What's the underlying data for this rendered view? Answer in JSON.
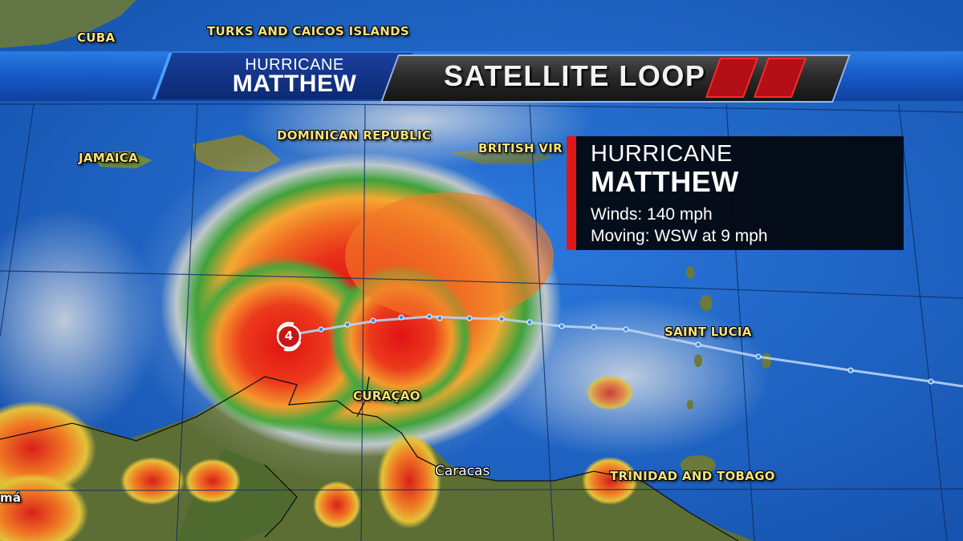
{
  "banner": {
    "storm_type": "HURRICANE",
    "storm_name": "MATTHEW",
    "product": "SATELLITE LOOP"
  },
  "info_panel": {
    "storm_type": "HURRICANE",
    "storm_name": "MATTHEW",
    "winds": "Winds: 140 mph",
    "moving": "Moving: WSW at 9 mph"
  },
  "storm_marker": {
    "category": "4"
  },
  "map_labels": {
    "cuba": "CUBA",
    "turks": "TURKS AND CAICOS ISLANDS",
    "jamaica": "JAMAICA",
    "dominican": "DOMINICAN REPUBLIC",
    "british": "BRITISH VIR",
    "saint_lucia": "SAINT LUCIA",
    "curacao": "CURAÇAO",
    "trinidad": "TRINIDAD AND TOBAGO",
    "panama_fragment": "má"
  },
  "cities": {
    "caracas": "Caracas"
  },
  "colors": {
    "ocean": "#1a5fc4",
    "banner_blue": "#1659c9",
    "accent_red": "#e01717",
    "label_yellow": "#f7e27a"
  }
}
